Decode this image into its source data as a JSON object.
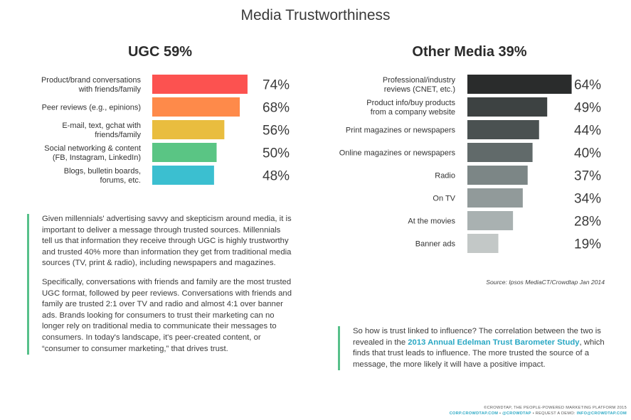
{
  "title": "Media Trustworthiness",
  "colors": {
    "accent_green": "#57c08a",
    "link_blue": "#2aa8c4"
  },
  "chart_data": [
    {
      "type": "bar",
      "orientation": "horizontal",
      "title": "UGC 59%",
      "categories": [
        [
          "Product/brand conversations",
          "with friends/family"
        ],
        [
          "Peer reviews (e.g., epinions)"
        ],
        [
          "E-mail, text, gchat with",
          "friends/family"
        ],
        [
          "Social networking & content",
          "(FB, Instagram, LinkedIn)"
        ],
        [
          "Blogs, bulletin boards,",
          "forums, etc."
        ]
      ],
      "values": [
        74,
        68,
        56,
        50,
        48
      ],
      "value_labels": [
        "74%",
        "68%",
        "56%",
        "50%",
        "48%"
      ],
      "bar_colors": [
        "#fc5250",
        "#fe8a4a",
        "#e9bd3f",
        "#5ac584",
        "#3bbfd0"
      ],
      "xlim": [
        0,
        100
      ],
      "grid": false,
      "legend": "none"
    },
    {
      "type": "bar",
      "orientation": "horizontal",
      "title": "Other Media 39%",
      "categories": [
        [
          "Professional/industry",
          "reviews (CNET, etc.)"
        ],
        [
          "Product info/buy products",
          "from a company website"
        ],
        [
          "Print magazines or newspapers"
        ],
        [
          "Online magazines or newspapers"
        ],
        [
          "Radio"
        ],
        [
          "On TV"
        ],
        [
          "At the movies"
        ],
        [
          "Banner ads"
        ]
      ],
      "values": [
        64,
        49,
        44,
        40,
        37,
        34,
        28,
        19
      ],
      "value_labels": [
        "64%",
        "49%",
        "44%",
        "40%",
        "37%",
        "34%",
        "28%",
        "19%"
      ],
      "bar_colors": [
        "#2a2c2c",
        "#3d4242",
        "#4a5151",
        "#616a6a",
        "#7c8686",
        "#919a9a",
        "#a9b1b1",
        "#c3c8c7"
      ],
      "xlim": [
        0,
        100
      ],
      "grid": false,
      "legend": "none",
      "source": "Source: Ipsos MediaCT/Crowdtap Jan 2014"
    }
  ],
  "left_text": {
    "paragraph_1": "Given millennials' advertising savvy and skepticism around media, it is important to deliver a message through trusted sources. Millennials tell us that information they receive through UGC is highly trustworthy and trusted 40% more than information they get from traditional media sources (TV, print & radio), including newspapers and magazines.",
    "paragraph_2": "Specifically, conversations with friends and family are the most trusted UGC format, followed by peer reviews. Conversations with friends and family are trusted 2:1 over TV and radio and almost 4:1 over banner ads. Brands looking for consumers to trust their marketing can no longer rely on traditional media to communicate their messages to consumers. In today's landscape, it's peer-created content, or “consumer to consumer marketing,” that drives trust."
  },
  "right_text": {
    "before_link": "So how is trust linked to influence? The correlation between the two is revealed in the ",
    "link": "2013 Annual Edelman Trust Barometer Study",
    "after_link": ", which finds that trust leads to influence. The more trusted the source of a message, the more likely it will have a positive impact."
  },
  "footer": {
    "line1": "©CROWDTAP, THE PEOPLE-POWERED MARKETING PLATFORM 2015",
    "site": "CORP.CROWDTAP.COM",
    "sep1": " • ",
    "handle": "@CROWDTAP",
    "sep2": " • REQUEST A DEMO: ",
    "email": "INFO@CROWDTAP.COM"
  }
}
